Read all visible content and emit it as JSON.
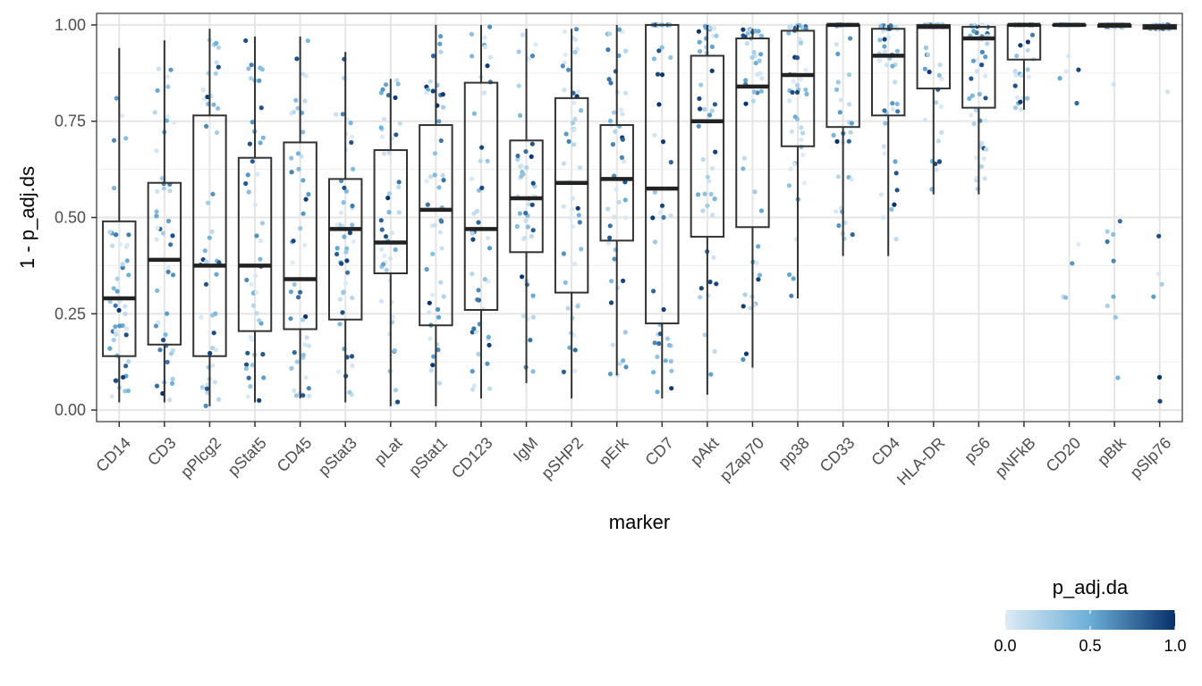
{
  "chart_data": {
    "type": "boxplot-jitter",
    "xlabel": "marker",
    "ylabel": "1 - p_adj.ds",
    "ylim": [
      -0.03,
      1.03
    ],
    "yticks": [
      0.0,
      0.25,
      0.5,
      0.75,
      1.0
    ],
    "ytick_labels": [
      "0.00",
      "0.25",
      "0.50",
      "0.75",
      "1.00"
    ],
    "grid": true,
    "categories": [
      "CD14",
      "CD3",
      "pPlcg2",
      "pStat5",
      "CD45",
      "pStat3",
      "pLat",
      "pStat1",
      "CD123",
      "IgM",
      "pSHP2",
      "pErk",
      "CD7",
      "pAkt",
      "pZap70",
      "pp38",
      "CD33",
      "CD4",
      "HLA-DR",
      "pS6",
      "pNFkB",
      "CD20",
      "pBtk",
      "pSlp76"
    ],
    "boxes": [
      {
        "q1": 0.14,
        "median": 0.29,
        "q3": 0.49,
        "lo": 0.02,
        "hi": 0.94
      },
      {
        "q1": 0.17,
        "median": 0.39,
        "q3": 0.59,
        "lo": 0.02,
        "hi": 0.96
      },
      {
        "q1": 0.14,
        "median": 0.375,
        "q3": 0.765,
        "lo": 0.01,
        "hi": 0.99
      },
      {
        "q1": 0.205,
        "median": 0.375,
        "q3": 0.655,
        "lo": 0.02,
        "hi": 0.97
      },
      {
        "q1": 0.21,
        "median": 0.34,
        "q3": 0.695,
        "lo": 0.03,
        "hi": 0.97
      },
      {
        "q1": 0.235,
        "median": 0.47,
        "q3": 0.6,
        "lo": 0.02,
        "hi": 0.93
      },
      {
        "q1": 0.355,
        "median": 0.435,
        "q3": 0.675,
        "lo": 0.01,
        "hi": 0.86
      },
      {
        "q1": 0.22,
        "median": 0.52,
        "q3": 0.74,
        "lo": 0.01,
        "hi": 1.0
      },
      {
        "q1": 0.26,
        "median": 0.47,
        "q3": 0.85,
        "lo": 0.03,
        "hi": 1.0
      },
      {
        "q1": 0.41,
        "median": 0.55,
        "q3": 0.7,
        "lo": 0.07,
        "hi": 0.99
      },
      {
        "q1": 0.305,
        "median": 0.59,
        "q3": 0.81,
        "lo": 0.03,
        "hi": 0.99
      },
      {
        "q1": 0.44,
        "median": 0.6,
        "q3": 0.74,
        "lo": 0.09,
        "hi": 1.0
      },
      {
        "q1": 0.225,
        "median": 0.575,
        "q3": 1.0,
        "lo": 0.03,
        "hi": 1.0
      },
      {
        "q1": 0.45,
        "median": 0.75,
        "q3": 0.92,
        "lo": 0.04,
        "hi": 1.0
      },
      {
        "q1": 0.475,
        "median": 0.84,
        "q3": 0.965,
        "lo": 0.11,
        "hi": 0.99
      },
      {
        "q1": 0.685,
        "median": 0.87,
        "q3": 0.985,
        "lo": 0.29,
        "hi": 1.0
      },
      {
        "q1": 0.735,
        "median": 1.0,
        "q3": 1.0,
        "lo": 0.4,
        "hi": 1.0
      },
      {
        "q1": 0.765,
        "median": 0.92,
        "q3": 0.99,
        "lo": 0.4,
        "hi": 1.0
      },
      {
        "q1": 0.835,
        "median": 0.995,
        "q3": 1.0,
        "lo": 0.56,
        "hi": 1.0
      },
      {
        "q1": 0.785,
        "median": 0.965,
        "q3": 0.995,
        "lo": 0.56,
        "hi": 1.0
      },
      {
        "q1": 0.91,
        "median": 1.0,
        "q3": 1.0,
        "lo": 0.78,
        "hi": 1.0
      },
      {
        "q1": 1.0,
        "median": 1.0,
        "q3": 1.0,
        "lo": 1.0,
        "hi": 1.0
      },
      {
        "q1": 0.995,
        "median": 1.0,
        "q3": 1.0,
        "lo": 0.995,
        "hi": 1.0
      },
      {
        "q1": 0.99,
        "median": 0.995,
        "q3": 1.0,
        "lo": 0.99,
        "hi": 1.0
      }
    ],
    "points_per_category": 48,
    "color_legend": {
      "title": "p_adj.da",
      "low": 0.0,
      "high": 1.0,
      "ticks": [
        0.0,
        0.5,
        1.0
      ],
      "tick_labels": [
        "0.0",
        "0.5",
        "1.0"
      ],
      "low_color": "#deebf7",
      "mid_color": "#6baed6",
      "high_color": "#08306b"
    }
  }
}
